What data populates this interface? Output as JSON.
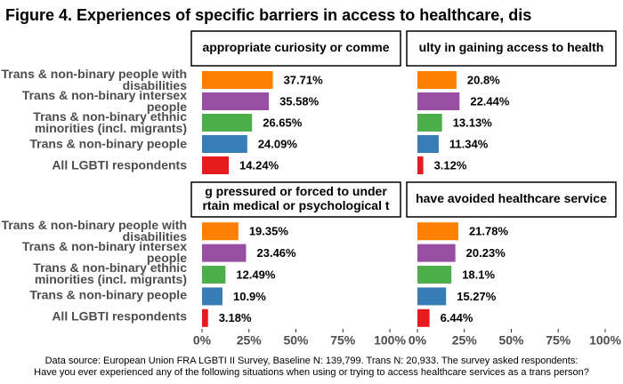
{
  "title": "Figure 4. Experiences of specific barriers in access to healthcare, dis",
  "categories": [
    "Trans & non-binary people with disabilities",
    "Trans & non-binary intersex people",
    "Trans & non-binary ethnic minorities (incl. migrants)",
    "Trans & non-binary people",
    "All LGBTI respondents"
  ],
  "colors": [
    "#ff7f00",
    "#984ea3",
    "#4daf4a",
    "#377eb8",
    "#e41a1c"
  ],
  "caption": [
    "Data source: European Union FRA LGBTI II Survey, Baseline N: 139,799. Trans N: 20,933. The survey asked respondents:",
    "Have you ever experienced any of the following situations when using or trying to access healthcare services as a trans person?"
  ],
  "chart_data": [
    {
      "type": "bar",
      "title": [
        "appropriate curiosity or comme"
      ],
      "values": [
        37.71,
        35.58,
        26.65,
        24.09,
        14.24
      ],
      "value_labels": [
        "37.71%",
        "35.58%",
        "26.65%",
        "24.09%",
        "14.24%"
      ],
      "xlim": [
        0,
        100
      ]
    },
    {
      "type": "bar",
      "title": [
        "ulty in gaining access to health"
      ],
      "values": [
        20.8,
        22.44,
        13.13,
        11.34,
        3.12
      ],
      "value_labels": [
        "20.8%",
        "22.44%",
        "13.13%",
        "11.34%",
        "3.12%"
      ],
      "xlim": [
        0,
        100
      ]
    },
    {
      "type": "bar",
      "title": [
        "g pressured or forced to under",
        "rtain medical or psychological t"
      ],
      "values": [
        19.35,
        23.46,
        12.49,
        10.9,
        3.18
      ],
      "value_labels": [
        "19.35%",
        "23.46%",
        "12.49%",
        "10.9%",
        "3.18%"
      ],
      "xlim": [
        0,
        100
      ],
      "xticks": [
        {
          "value": 0,
          "label": "0%"
        },
        {
          "value": 25,
          "label": "25%"
        },
        {
          "value": 50,
          "label": "50%"
        },
        {
          "value": 75,
          "label": "75%"
        },
        {
          "value": 100,
          "label": "100%"
        }
      ]
    },
    {
      "type": "bar",
      "title": [
        "have avoided healthcare service"
      ],
      "values": [
        21.78,
        20.23,
        18.1,
        15.27,
        6.44
      ],
      "value_labels": [
        "21.78%",
        "20.23%",
        "18.1%",
        "15.27%",
        "6.44%"
      ],
      "xlim": [
        0,
        100
      ],
      "xticks": [
        {
          "value": 0,
          "label": "0%"
        },
        {
          "value": 25,
          "label": "25%"
        },
        {
          "value": 50,
          "label": "50%"
        },
        {
          "value": 75,
          "label": "75%"
        },
        {
          "value": 100,
          "label": "100%"
        }
      ]
    }
  ]
}
